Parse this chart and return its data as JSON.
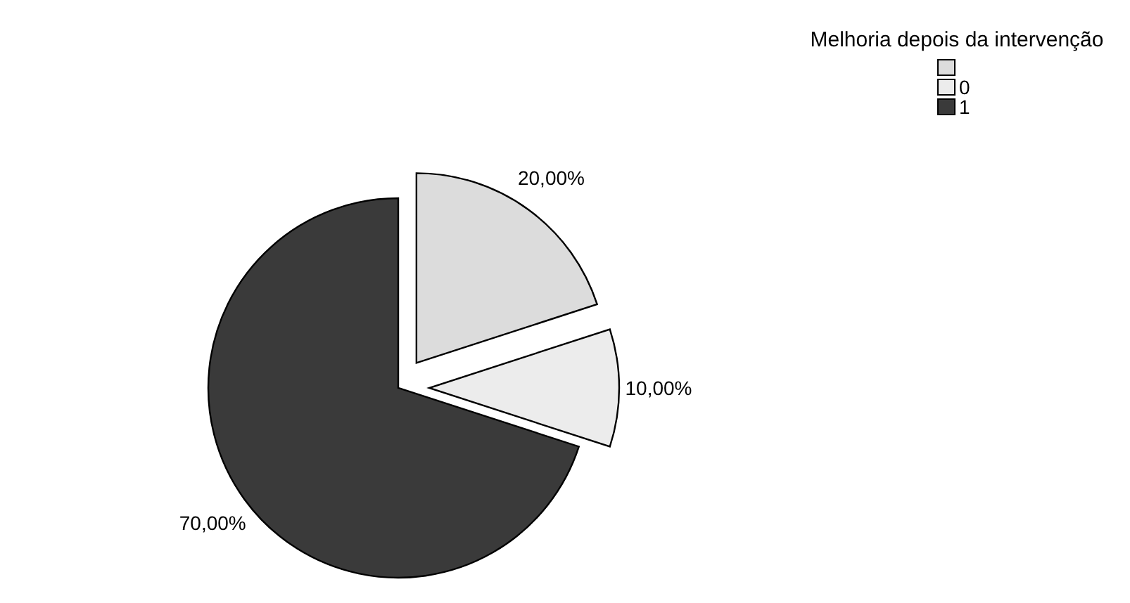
{
  "chart_data": {
    "type": "pie",
    "legend_title": "Melhoria depois da intervenção",
    "categories": [
      null,
      "0",
      "1"
    ],
    "values": [
      20,
      10,
      70
    ],
    "colors": [
      "#dcdcdc",
      "#ececec",
      "#3a3a3a"
    ],
    "value_labels": [
      "20,00%",
      "10,00%",
      "70,00%"
    ],
    "legend": "top right"
  }
}
